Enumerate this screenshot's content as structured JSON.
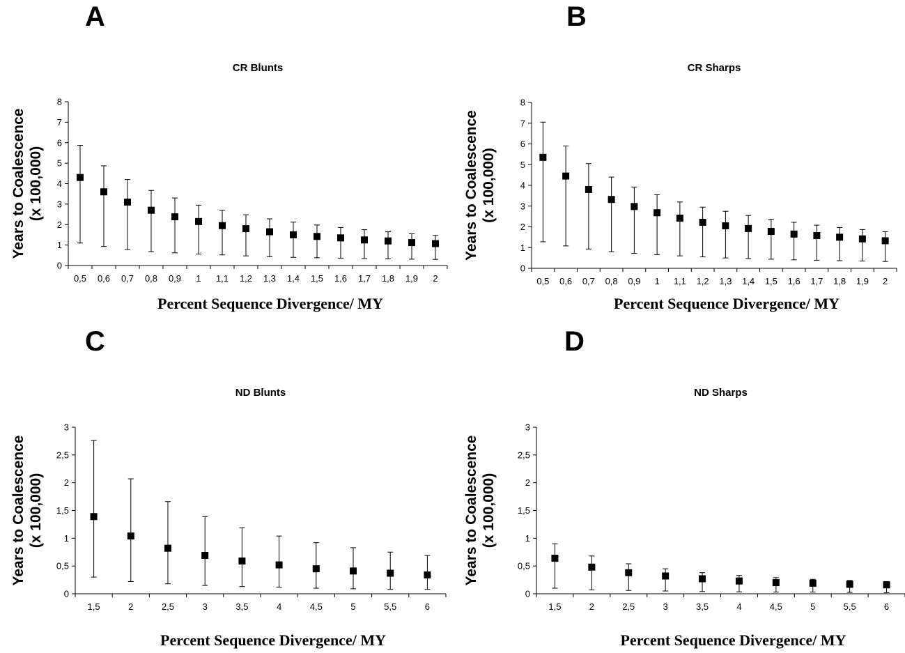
{
  "chart_data": [
    {
      "panel": "A",
      "type": "scatter",
      "title": "CR Blunts",
      "xlabel": "Percent Sequence Divergence/ MY",
      "ylabel_line1": "Years to Coalescence",
      "ylabel_line2": "(x 100,000)",
      "ylim": [
        0,
        8
      ],
      "yticks": [
        "0",
        "1",
        "2",
        "3",
        "4",
        "5",
        "6",
        "7",
        "8"
      ],
      "categories": [
        "0,5",
        "0,6",
        "0,7",
        "0,8",
        "0,9",
        "1",
        "1,1",
        "1,2",
        "1,3",
        "1,4",
        "1,5",
        "1,6",
        "1,7",
        "1,8",
        "1,9",
        "2"
      ],
      "values": [
        4.3,
        3.6,
        3.1,
        2.7,
        2.38,
        2.15,
        1.95,
        1.8,
        1.65,
        1.5,
        1.42,
        1.35,
        1.25,
        1.2,
        1.12,
        1.07
      ],
      "lower": [
        1.1,
        0.93,
        0.78,
        0.68,
        0.62,
        0.56,
        0.52,
        0.47,
        0.43,
        0.4,
        0.38,
        0.36,
        0.34,
        0.33,
        0.31,
        0.3
      ],
      "upper": [
        5.87,
        4.87,
        4.2,
        3.67,
        3.3,
        2.95,
        2.7,
        2.48,
        2.28,
        2.12,
        1.98,
        1.86,
        1.75,
        1.65,
        1.55,
        1.47
      ]
    },
    {
      "panel": "B",
      "type": "scatter",
      "title": "CR Sharps",
      "xlabel": "Percent Sequence Divergence/ MY",
      "ylabel_line1": "Years to Coalescence",
      "ylabel_line2": "(x 100,000)",
      "ylim": [
        0,
        8
      ],
      "yticks": [
        "0",
        "1",
        "2",
        "3",
        "4",
        "5",
        "6",
        "7",
        "8"
      ],
      "categories": [
        "0,5",
        "0,6",
        "0,7",
        "0,8",
        "0,9",
        "1",
        "1,1",
        "1,2",
        "1,3",
        "1,4",
        "1,5",
        "1,6",
        "1,7",
        "1,8",
        "1,9",
        "2"
      ],
      "values": [
        5.35,
        4.45,
        3.8,
        3.32,
        2.98,
        2.68,
        2.42,
        2.22,
        2.05,
        1.92,
        1.78,
        1.65,
        1.58,
        1.5,
        1.42,
        1.33
      ],
      "lower": [
        1.28,
        1.08,
        0.93,
        0.8,
        0.72,
        0.66,
        0.6,
        0.55,
        0.5,
        0.47,
        0.44,
        0.41,
        0.39,
        0.37,
        0.35,
        0.33
      ],
      "upper": [
        7.05,
        5.9,
        5.05,
        4.4,
        3.92,
        3.55,
        3.2,
        2.95,
        2.75,
        2.55,
        2.37,
        2.22,
        2.08,
        1.97,
        1.87,
        1.77
      ]
    },
    {
      "panel": "C",
      "type": "scatter",
      "title": "ND Blunts",
      "xlabel": "Percent Sequence Divergence/ MY",
      "ylabel_line1": "Years to Coalescence",
      "ylabel_line2": "(x 100,000)",
      "ylim": [
        0,
        3
      ],
      "yticks": [
        "0",
        "0,5",
        "1",
        "1,5",
        "2",
        "2,5",
        "3"
      ],
      "categories": [
        "1,5",
        "2",
        "2,5",
        "3",
        "3,5",
        "4",
        "4,5",
        "5",
        "5,5",
        "6"
      ],
      "values": [
        1.39,
        1.04,
        0.82,
        0.69,
        0.59,
        0.52,
        0.45,
        0.41,
        0.37,
        0.34
      ],
      "lower": [
        0.3,
        0.22,
        0.18,
        0.15,
        0.13,
        0.12,
        0.1,
        0.09,
        0.08,
        0.08
      ],
      "upper": [
        2.76,
        2.07,
        1.66,
        1.39,
        1.19,
        1.04,
        0.92,
        0.83,
        0.75,
        0.69
      ]
    },
    {
      "panel": "D",
      "type": "scatter",
      "title": "ND Sharps",
      "xlabel": "Percent Sequence Divergence/ MY",
      "ylabel_line1": "Years to Coalescence",
      "ylabel_line2": "(x 100,000)",
      "ylim": [
        0,
        3
      ],
      "yticks": [
        "0",
        "0,5",
        "1",
        "1,5",
        "2",
        "2,5",
        "3"
      ],
      "categories": [
        "1,5",
        "2",
        "2,5",
        "3",
        "3,5",
        "4",
        "4,5",
        "5",
        "5,5",
        "6"
      ],
      "values": [
        0.64,
        0.48,
        0.38,
        0.32,
        0.27,
        0.23,
        0.2,
        0.19,
        0.17,
        0.16
      ],
      "lower": [
        0.1,
        0.07,
        0.06,
        0.05,
        0.04,
        0.035,
        0.03,
        0.03,
        0.025,
        0.02
      ],
      "upper": [
        0.9,
        0.68,
        0.54,
        0.45,
        0.38,
        0.33,
        0.29,
        0.26,
        0.24,
        0.22
      ]
    }
  ]
}
